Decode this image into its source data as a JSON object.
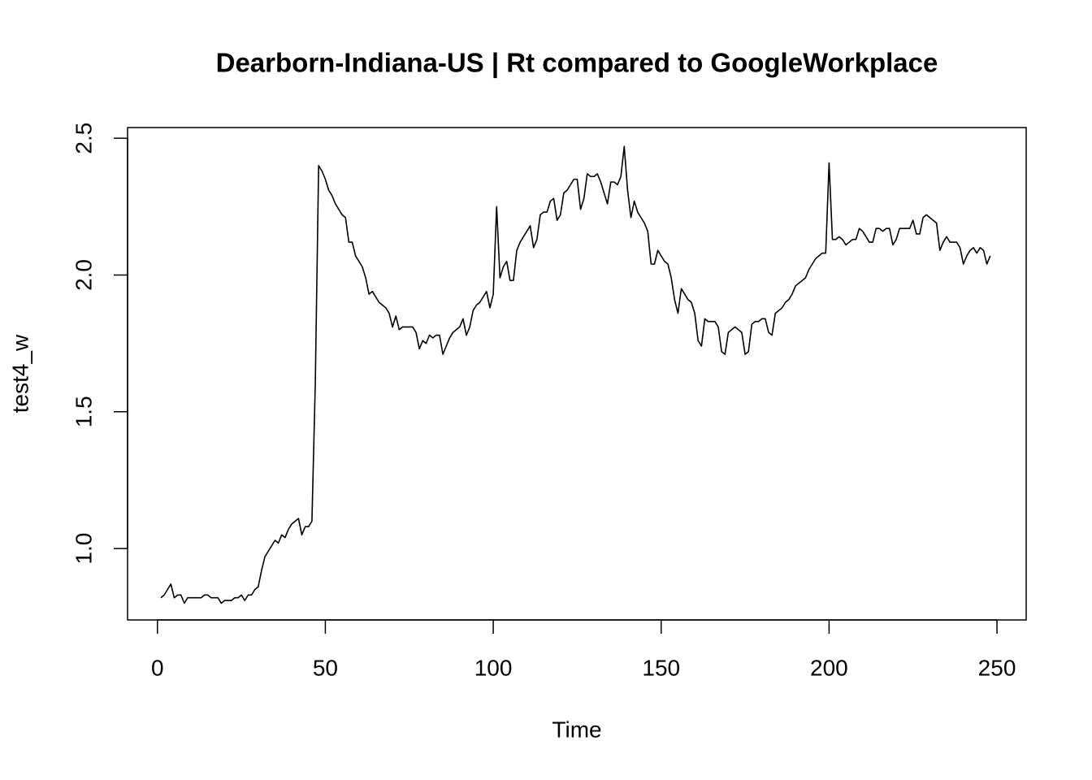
{
  "chart_data": {
    "type": "line",
    "title": "Dearborn-Indiana-US | Rt compared to GoogleWorkplace",
    "xlabel": "Time",
    "ylabel": "test4_w",
    "xlim": [
      -8.9,
      258.7
    ],
    "ylim": [
      0.739,
      2.539
    ],
    "xticks": [
      0,
      50,
      100,
      150,
      200,
      250
    ],
    "yticks": [
      {
        "value": 1,
        "label": "1.0"
      },
      1.5,
      {
        "value": 2,
        "label": "2.0"
      },
      2.5
    ],
    "grid": false,
    "x": [
      1,
      2,
      3,
      4,
      5,
      6,
      7,
      8,
      9,
      10,
      11,
      12,
      13,
      14,
      15,
      16,
      17,
      18,
      19,
      20,
      21,
      22,
      23,
      24,
      25,
      26,
      27,
      28,
      29,
      30,
      31,
      32,
      33,
      34,
      35,
      36,
      37,
      38,
      39,
      40,
      41,
      42,
      43,
      44,
      45,
      46,
      47,
      48,
      49,
      50,
      51,
      52,
      53,
      54,
      55,
      56,
      57,
      58,
      59,
      60,
      61,
      62,
      63,
      64,
      65,
      66,
      67,
      68,
      69,
      70,
      71,
      72,
      73,
      74,
      75,
      76,
      77,
      78,
      79,
      80,
      81,
      82,
      83,
      84,
      85,
      86,
      87,
      88,
      89,
      90,
      91,
      92,
      93,
      94,
      95,
      96,
      97,
      98,
      99,
      100,
      101,
      102,
      103,
      104,
      105,
      106,
      107,
      108,
      109,
      110,
      111,
      112,
      113,
      114,
      115,
      116,
      117,
      118,
      119,
      120,
      121,
      122,
      123,
      124,
      125,
      126,
      127,
      128,
      129,
      130,
      131,
      132,
      133,
      134,
      135,
      136,
      137,
      138,
      139,
      140,
      141,
      142,
      143,
      144,
      145,
      146,
      147,
      148,
      149,
      150,
      151,
      152,
      153,
      154,
      155,
      156,
      157,
      158,
      159,
      160,
      161,
      162,
      163,
      164,
      165,
      166,
      167,
      168,
      169,
      170,
      171,
      172,
      173,
      174,
      175,
      176,
      177,
      178,
      179,
      180,
      181,
      182,
      183,
      184,
      185,
      186,
      187,
      188,
      189,
      190,
      191,
      192,
      193,
      194,
      195,
      196,
      197,
      198,
      199,
      200,
      201,
      202,
      203,
      204,
      205,
      206,
      207,
      208,
      209,
      210,
      211,
      212,
      213,
      214,
      215,
      216,
      217,
      218,
      219,
      220,
      221,
      222,
      223,
      224,
      225,
      226,
      227,
      228,
      229,
      230,
      231,
      232,
      233,
      234,
      235,
      236,
      237,
      238,
      239,
      240,
      241,
      242,
      243,
      244,
      245,
      246,
      247,
      248
    ],
    "series": [
      {
        "name": "test4_w",
        "color": "#000000",
        "values": [
          0.82,
          0.83,
          0.85,
          0.87,
          0.82,
          0.83,
          0.83,
          0.8,
          0.82,
          0.82,
          0.82,
          0.82,
          0.82,
          0.83,
          0.83,
          0.82,
          0.82,
          0.82,
          0.8,
          0.81,
          0.81,
          0.81,
          0.82,
          0.82,
          0.83,
          0.81,
          0.83,
          0.83,
          0.85,
          0.86,
          0.92,
          0.97,
          0.99,
          1.01,
          1.03,
          1.02,
          1.05,
          1.04,
          1.07,
          1.09,
          1.1,
          1.11,
          1.05,
          1.08,
          1.08,
          1.1,
          1.6,
          2.4,
          2.38,
          2.35,
          2.31,
          2.29,
          2.26,
          2.24,
          2.22,
          2.21,
          2.12,
          2.12,
          2.07,
          2.05,
          2.03,
          1.99,
          1.93,
          1.94,
          1.92,
          1.9,
          1.89,
          1.88,
          1.86,
          1.81,
          1.85,
          1.8,
          1.81,
          1.81,
          1.81,
          1.81,
          1.79,
          1.73,
          1.76,
          1.75,
          1.78,
          1.77,
          1.78,
          1.78,
          1.71,
          1.74,
          1.77,
          1.79,
          1.8,
          1.81,
          1.84,
          1.78,
          1.81,
          1.87,
          1.89,
          1.9,
          1.92,
          1.94,
          1.88,
          1.93,
          2.25,
          1.99,
          2.03,
          2.05,
          1.98,
          1.98,
          2.09,
          2.12,
          2.14,
          2.16,
          2.18,
          2.1,
          2.13,
          2.22,
          2.23,
          2.23,
          2.27,
          2.28,
          2.2,
          2.22,
          2.3,
          2.31,
          2.33,
          2.35,
          2.35,
          2.24,
          2.28,
          2.37,
          2.36,
          2.36,
          2.37,
          2.34,
          2.3,
          2.26,
          2.34,
          2.34,
          2.33,
          2.36,
          2.47,
          2.31,
          2.21,
          2.27,
          2.23,
          2.21,
          2.19,
          2.16,
          2.04,
          2.04,
          2.09,
          2.07,
          2.05,
          2.04,
          1.99,
          1.91,
          1.86,
          1.95,
          1.93,
          1.91,
          1.9,
          1.86,
          1.76,
          1.74,
          1.84,
          1.83,
          1.83,
          1.83,
          1.81,
          1.72,
          1.71,
          1.79,
          1.8,
          1.81,
          1.8,
          1.79,
          1.71,
          1.72,
          1.82,
          1.83,
          1.83,
          1.84,
          1.84,
          1.79,
          1.78,
          1.86,
          1.87,
          1.88,
          1.9,
          1.91,
          1.93,
          1.96,
          1.97,
          1.98,
          1.99,
          2.02,
          2.04,
          2.06,
          2.07,
          2.08,
          2.08,
          2.41,
          2.13,
          2.13,
          2.14,
          2.13,
          2.11,
          2.12,
          2.13,
          2.13,
          2.17,
          2.16,
          2.14,
          2.12,
          2.12,
          2.17,
          2.17,
          2.16,
          2.17,
          2.17,
          2.11,
          2.13,
          2.17,
          2.17,
          2.17,
          2.17,
          2.2,
          2.15,
          2.15,
          2.21,
          2.22,
          2.21,
          2.2,
          2.19,
          2.09,
          2.12,
          2.14,
          2.12,
          2.12,
          2.12,
          2.1,
          2.04,
          2.07,
          2.09,
          2.1,
          2.08,
          2.1,
          2.09,
          2.04,
          2.07
        ]
      }
    ]
  }
}
